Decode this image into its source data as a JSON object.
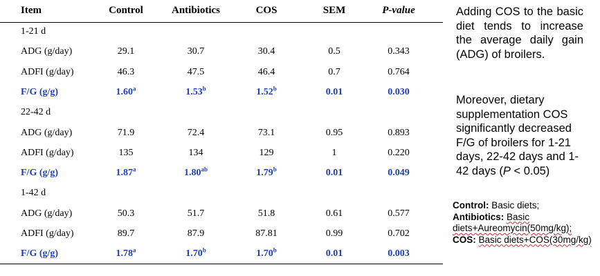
{
  "table": {
    "headers": [
      "Item",
      "Control",
      "Antibiotics",
      "COS",
      "SEM",
      "P-value"
    ],
    "sections": [
      {
        "label": "1-21 d",
        "rows": [
          {
            "item": "ADG (g/day)",
            "control": "29.1",
            "antibiotics": "30.7",
            "cos": "30.4",
            "sem": "0.5",
            "p": "0.343",
            "highlight": false
          },
          {
            "item": "ADFI (g/day)",
            "control": "46.3",
            "antibiotics": "47.5",
            "cos": "46.4",
            "sem": "0.7",
            "p": "0.764",
            "highlight": false
          },
          {
            "item": "F/G (g/g)",
            "control": "1.60",
            "control_sup": "a",
            "antibiotics": "1.53",
            "antibiotics_sup": "b",
            "cos": "1.52",
            "cos_sup": "b",
            "sem": "0.01",
            "p": "0.030",
            "highlight": true
          }
        ]
      },
      {
        "label": "22-42 d",
        "rows": [
          {
            "item": "ADG (g/day)",
            "control": "71.9",
            "antibiotics": "72.4",
            "cos": "73.1",
            "sem": "0.95",
            "p": "0.893",
            "highlight": false
          },
          {
            "item": "ADFI (g/day)",
            "control": "135",
            "antibiotics": "134",
            "cos": "129",
            "sem": "1",
            "p": "0.220",
            "highlight": false
          },
          {
            "item": "F/G (g/g)",
            "control": "1.87",
            "control_sup": "a",
            "antibiotics": "1.80",
            "antibiotics_sup": "ab",
            "cos": "1.79",
            "cos_sup": "b",
            "sem": "0.01",
            "p": "0.049",
            "highlight": true
          }
        ]
      },
      {
        "label": "1-42 d",
        "rows": [
          {
            "item": "ADG (g/day)",
            "control": "50.3",
            "antibiotics": "51.7",
            "cos": "51.8",
            "sem": "0.61",
            "p": "0.577",
            "highlight": false
          },
          {
            "item": "ADFI (g/day)",
            "control": "89.7",
            "antibiotics": "87.9",
            "cos": "87.81",
            "sem": "0.99",
            "p": "0.702",
            "highlight": false
          },
          {
            "item": "F/G (g/g)",
            "control": "1.78",
            "control_sup": "a",
            "antibiotics": "1.70",
            "antibiotics_sup": "b",
            "cos": "1.70",
            "cos_sup": "b",
            "sem": "0.01",
            "p": "0.003",
            "highlight": true
          }
        ]
      }
    ]
  },
  "side": {
    "paragraph1": "Adding COS to the basic diet tends to increase the average daily gain (ADG) of broilers.",
    "paragraph2_pre": "Moreover, dietary supplementation COS significantly decreased F/G of broilers for 1-21 days, 22-42 days and 1-42 days (",
    "paragraph2_p": "P",
    "paragraph2_post": " < 0.05)",
    "notes": [
      {
        "term": "Control:",
        "desc": "Basic diets;"
      },
      {
        "term": "Antibiotics:",
        "desc": "Basic diets+Aureomycin(50mg/kg);"
      },
      {
        "term": "COS:",
        "desc": "Basic diets+COS(30mg/kg)"
      }
    ]
  },
  "colors": {
    "highlight_blue": "#1f3fb8",
    "text": "#000000",
    "spellcheck_underline": "#c03030"
  }
}
